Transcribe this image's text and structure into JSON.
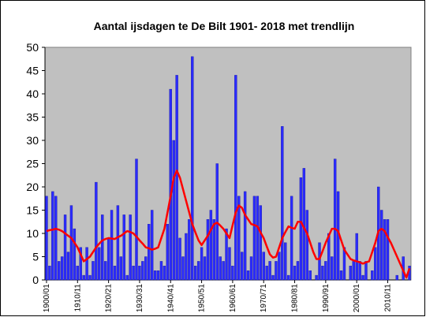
{
  "chart_data": {
    "type": "bar_line",
    "title": "Aantal ijsdagen te De Bilt 1901- 2018 met trendlijn",
    "categories": [
      "1900/01",
      null,
      null,
      null,
      null,
      null,
      null,
      null,
      null,
      null,
      "1910/11",
      null,
      null,
      null,
      null,
      null,
      null,
      null,
      null,
      null,
      "1920/21",
      null,
      null,
      null,
      null,
      null,
      null,
      null,
      null,
      null,
      "1930/31",
      null,
      null,
      null,
      null,
      null,
      null,
      null,
      null,
      null,
      "1940/41",
      null,
      null,
      null,
      null,
      null,
      null,
      null,
      null,
      null,
      "1950/51",
      null,
      null,
      null,
      null,
      null,
      null,
      null,
      null,
      null,
      "1960/61",
      null,
      null,
      null,
      null,
      null,
      null,
      null,
      null,
      null,
      "1970/71",
      null,
      null,
      null,
      null,
      null,
      null,
      null,
      null,
      null,
      "1980/81",
      null,
      null,
      null,
      null,
      null,
      null,
      null,
      null,
      null,
      "1990/91",
      null,
      null,
      null,
      null,
      null,
      null,
      null,
      null,
      null,
      "2000/01",
      null,
      null,
      null,
      null,
      null,
      null,
      null,
      null,
      null,
      "2010/11",
      null,
      null,
      null,
      null,
      null,
      null,
      null
    ],
    "series": [
      {
        "type": "bar",
        "color": "#2b2bff",
        "values": [
          18,
          3,
          19,
          18,
          4,
          5,
          14,
          6,
          16,
          11,
          3,
          7,
          1,
          7,
          1,
          4,
          21,
          7,
          14,
          4,
          9,
          15,
          3,
          16,
          5,
          14,
          1,
          14,
          3,
          26,
          3,
          4,
          5,
          12,
          15,
          2,
          2,
          4,
          3,
          12,
          41,
          30,
          44,
          9,
          5,
          10,
          13,
          48,
          3,
          4,
          7,
          5,
          13,
          15,
          13,
          25,
          5,
          4,
          11,
          7,
          3,
          44,
          18,
          6,
          19,
          2,
          5,
          18,
          18,
          16,
          6,
          3,
          4,
          1,
          4,
          6,
          33,
          8,
          1,
          18,
          3,
          4,
          22,
          24,
          15,
          2,
          0,
          1,
          8,
          3,
          4,
          10,
          5,
          26,
          19,
          2,
          7,
          0,
          3,
          4,
          10,
          4,
          1,
          4,
          0,
          2,
          7,
          20,
          15,
          13,
          13,
          0,
          0,
          1,
          0,
          5,
          0,
          3
        ]
      },
      {
        "type": "line",
        "color": "#ff0000",
        "values": [
          10.5,
          10.7,
          10.8,
          11,
          10.8,
          10.5,
          10,
          9.5,
          9,
          8,
          7,
          5.5,
          4,
          4.5,
          5,
          6,
          7,
          7.8,
          8.5,
          8.8,
          9,
          8.9,
          8.8,
          9.2,
          9.5,
          10,
          10.5,
          10.3,
          10,
          9.3,
          8.5,
          7.8,
          7,
          6.8,
          6.5,
          6.7,
          7,
          9,
          11,
          14.5,
          18,
          22,
          23.5,
          22,
          19.5,
          17,
          14.5,
          12,
          10.2,
          8.5,
          7.5,
          8.5,
          9.5,
          10.8,
          12,
          12.3,
          11.7,
          11,
          10,
          9,
          11.8,
          14.5,
          16,
          15.5,
          14,
          13,
          12,
          11.8,
          11.5,
          10.2,
          9,
          7.2,
          5.5,
          4.8,
          5,
          7,
          9,
          10.3,
          11.5,
          11.2,
          11,
          12.5,
          12.5,
          11.2,
          10,
          8,
          6,
          4.5,
          4.5,
          6.2,
          8,
          9.5,
          11,
          11,
          10.5,
          8.5,
          6.5,
          5.5,
          4.5,
          4.2,
          4,
          3.8,
          3.5,
          3.8,
          4,
          6,
          8,
          10.5,
          11,
          10.5,
          9.2,
          8,
          6.5,
          5,
          3.5,
          2,
          0.5,
          2.5
        ]
      }
    ],
    "ylim": [
      0,
      50
    ],
    "yticks": [
      0,
      5,
      10,
      15,
      20,
      25,
      30,
      35,
      40,
      45,
      50
    ],
    "grid": false,
    "plot_background": "#c0c0c0"
  }
}
